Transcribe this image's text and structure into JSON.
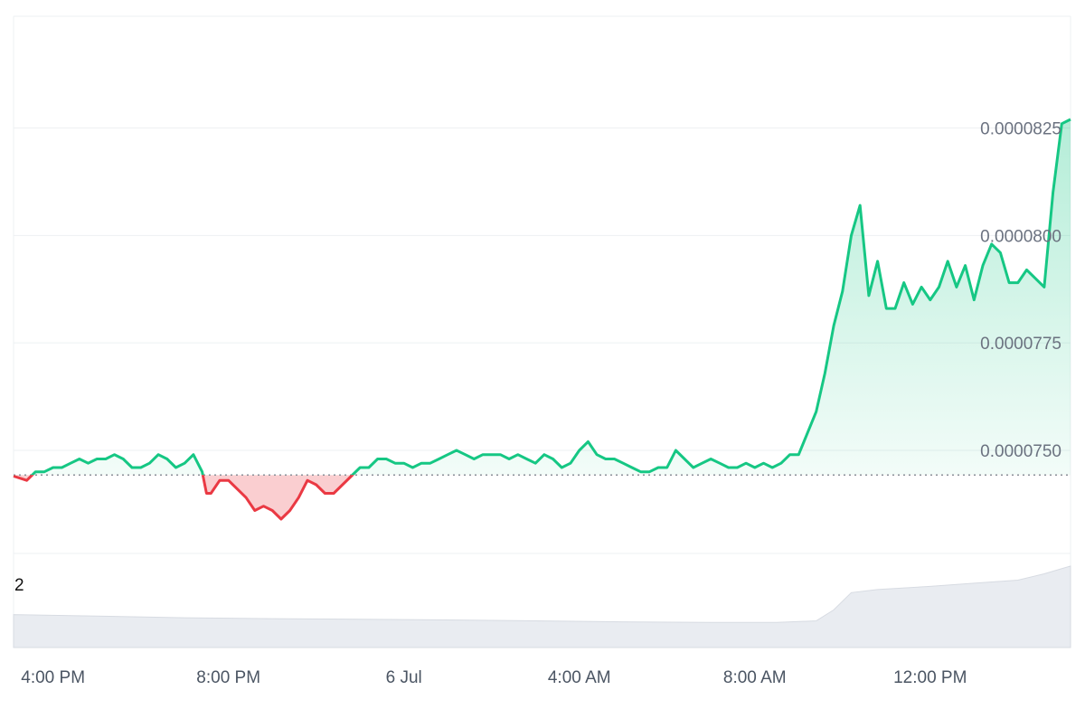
{
  "colors": {
    "up": "#16c784",
    "down": "#ea3943",
    "grid": "#eef0f3",
    "baseline": "#8a8f98",
    "volume": "#e9ecf1",
    "volume_top": "#d7dbe2"
  },
  "chart_data": {
    "type": "area",
    "title": "",
    "xlabel": "",
    "ylabel": "",
    "baseline": 7.4425e-05,
    "ylim": [
      7.26e-05,
      8.51e-05
    ],
    "y_ticks": [
      {
        "value": 7.5e-05,
        "label": "0.0000750"
      },
      {
        "value": 7.75e-05,
        "label": "0.0000775"
      },
      {
        "value": 8e-05,
        "label": "0.0000800"
      },
      {
        "value": 8.25e-05,
        "label": "0.0000825"
      }
    ],
    "x_ticks": [
      {
        "hours": 0,
        "label": "4:00 PM"
      },
      {
        "hours": 4,
        "label": "8:00 PM"
      },
      {
        "hours": 8,
        "label": "6 Jul"
      },
      {
        "hours": 12,
        "label": "4:00 AM"
      },
      {
        "hours": 16,
        "label": "8:00 AM"
      },
      {
        "hours": 20,
        "label": "12:00 PM"
      }
    ],
    "xlim_hours": [
      -0.9,
      23.2
    ],
    "series": [
      {
        "values": [
          [
            -0.9,
            7.44e-05
          ],
          [
            -0.6,
            7.43e-05
          ],
          [
            -0.4,
            7.45e-05
          ],
          [
            -0.2,
            7.45e-05
          ],
          [
            0.0,
            7.46e-05
          ],
          [
            0.2,
            7.46e-05
          ],
          [
            0.4,
            7.47e-05
          ],
          [
            0.6,
            7.48e-05
          ],
          [
            0.8,
            7.47e-05
          ],
          [
            1.0,
            7.48e-05
          ],
          [
            1.2,
            7.48e-05
          ],
          [
            1.4,
            7.49e-05
          ],
          [
            1.6,
            7.48e-05
          ],
          [
            1.8,
            7.46e-05
          ],
          [
            2.0,
            7.46e-05
          ],
          [
            2.2,
            7.47e-05
          ],
          [
            2.4,
            7.49e-05
          ],
          [
            2.6,
            7.48e-05
          ],
          [
            2.8,
            7.46e-05
          ],
          [
            3.0,
            7.47e-05
          ],
          [
            3.2,
            7.49e-05
          ],
          [
            3.4,
            7.45e-05
          ],
          [
            3.5,
            7.4e-05
          ],
          [
            3.6,
            7.4e-05
          ],
          [
            3.8,
            7.43e-05
          ],
          [
            4.0,
            7.43e-05
          ],
          [
            4.2,
            7.41e-05
          ],
          [
            4.4,
            7.39e-05
          ],
          [
            4.6,
            7.36e-05
          ],
          [
            4.8,
            7.37e-05
          ],
          [
            5.0,
            7.36e-05
          ],
          [
            5.2,
            7.34e-05
          ],
          [
            5.4,
            7.36e-05
          ],
          [
            5.6,
            7.39e-05
          ],
          [
            5.8,
            7.43e-05
          ],
          [
            6.0,
            7.42e-05
          ],
          [
            6.2,
            7.4e-05
          ],
          [
            6.4,
            7.4e-05
          ],
          [
            6.6,
            7.42e-05
          ],
          [
            6.8,
            7.44e-05
          ],
          [
            7.0,
            7.46e-05
          ],
          [
            7.2,
            7.46e-05
          ],
          [
            7.4,
            7.48e-05
          ],
          [
            7.6,
            7.48e-05
          ],
          [
            7.8,
            7.47e-05
          ],
          [
            8.0,
            7.47e-05
          ],
          [
            8.2,
            7.46e-05
          ],
          [
            8.4,
            7.47e-05
          ],
          [
            8.6,
            7.47e-05
          ],
          [
            8.8,
            7.48e-05
          ],
          [
            9.0,
            7.49e-05
          ],
          [
            9.2,
            7.5e-05
          ],
          [
            9.4,
            7.49e-05
          ],
          [
            9.6,
            7.48e-05
          ],
          [
            9.8,
            7.49e-05
          ],
          [
            10.0,
            7.49e-05
          ],
          [
            10.2,
            7.49e-05
          ],
          [
            10.4,
            7.48e-05
          ],
          [
            10.6,
            7.49e-05
          ],
          [
            10.8,
            7.48e-05
          ],
          [
            11.0,
            7.47e-05
          ],
          [
            11.2,
            7.49e-05
          ],
          [
            11.4,
            7.48e-05
          ],
          [
            11.6,
            7.46e-05
          ],
          [
            11.8,
            7.47e-05
          ],
          [
            12.0,
            7.5e-05
          ],
          [
            12.2,
            7.52e-05
          ],
          [
            12.4,
            7.49e-05
          ],
          [
            12.6,
            7.48e-05
          ],
          [
            12.8,
            7.48e-05
          ],
          [
            13.0,
            7.47e-05
          ],
          [
            13.2,
            7.46e-05
          ],
          [
            13.4,
            7.45e-05
          ],
          [
            13.6,
            7.45e-05
          ],
          [
            13.8,
            7.46e-05
          ],
          [
            14.0,
            7.46e-05
          ],
          [
            14.2,
            7.5e-05
          ],
          [
            14.4,
            7.48e-05
          ],
          [
            14.6,
            7.46e-05
          ],
          [
            14.8,
            7.47e-05
          ],
          [
            15.0,
            7.48e-05
          ],
          [
            15.2,
            7.47e-05
          ],
          [
            15.4,
            7.46e-05
          ],
          [
            15.6,
            7.46e-05
          ],
          [
            15.8,
            7.47e-05
          ],
          [
            16.0,
            7.46e-05
          ],
          [
            16.2,
            7.47e-05
          ],
          [
            16.4,
            7.46e-05
          ],
          [
            16.6,
            7.47e-05
          ],
          [
            16.8,
            7.49e-05
          ],
          [
            17.0,
            7.49e-05
          ],
          [
            17.2,
            7.54e-05
          ],
          [
            17.4,
            7.59e-05
          ],
          [
            17.6,
            7.68e-05
          ],
          [
            17.8,
            7.79e-05
          ],
          [
            18.0,
            7.87e-05
          ],
          [
            18.2,
            8e-05
          ],
          [
            18.4,
            8.07e-05
          ],
          [
            18.6,
            7.86e-05
          ],
          [
            18.8,
            7.94e-05
          ],
          [
            19.0,
            7.83e-05
          ],
          [
            19.2,
            7.83e-05
          ],
          [
            19.4,
            7.89e-05
          ],
          [
            19.6,
            7.84e-05
          ],
          [
            19.8,
            7.88e-05
          ],
          [
            20.0,
            7.85e-05
          ],
          [
            20.2,
            7.88e-05
          ],
          [
            20.4,
            7.94e-05
          ],
          [
            20.6,
            7.88e-05
          ],
          [
            20.8,
            7.93e-05
          ],
          [
            21.0,
            7.85e-05
          ],
          [
            21.2,
            7.93e-05
          ],
          [
            21.4,
            7.98e-05
          ],
          [
            21.6,
            7.96e-05
          ],
          [
            21.8,
            7.89e-05
          ],
          [
            22.0,
            7.89e-05
          ],
          [
            22.2,
            7.92e-05
          ],
          [
            22.4,
            7.9e-05
          ],
          [
            22.6,
            7.88e-05
          ],
          [
            22.8,
            8.1e-05
          ],
          [
            23.0,
            8.26e-05
          ],
          [
            23.2,
            8.27e-05
          ]
        ]
      }
    ],
    "volume": {
      "label": "2",
      "values": [
        [
          -0.9,
          1.05
        ],
        [
          1.0,
          1.0
        ],
        [
          3.0,
          0.95
        ],
        [
          5.0,
          0.92
        ],
        [
          7.0,
          0.9
        ],
        [
          9.0,
          0.88
        ],
        [
          11.0,
          0.85
        ],
        [
          13.0,
          0.82
        ],
        [
          15.0,
          0.8
        ],
        [
          16.5,
          0.8
        ],
        [
          17.4,
          0.85
        ],
        [
          17.8,
          1.2
        ],
        [
          18.2,
          1.75
        ],
        [
          18.8,
          1.85
        ],
        [
          20.0,
          1.95
        ],
        [
          21.0,
          2.05
        ],
        [
          22.0,
          2.15
        ],
        [
          22.6,
          2.35
        ],
        [
          23.2,
          2.6
        ]
      ]
    }
  }
}
